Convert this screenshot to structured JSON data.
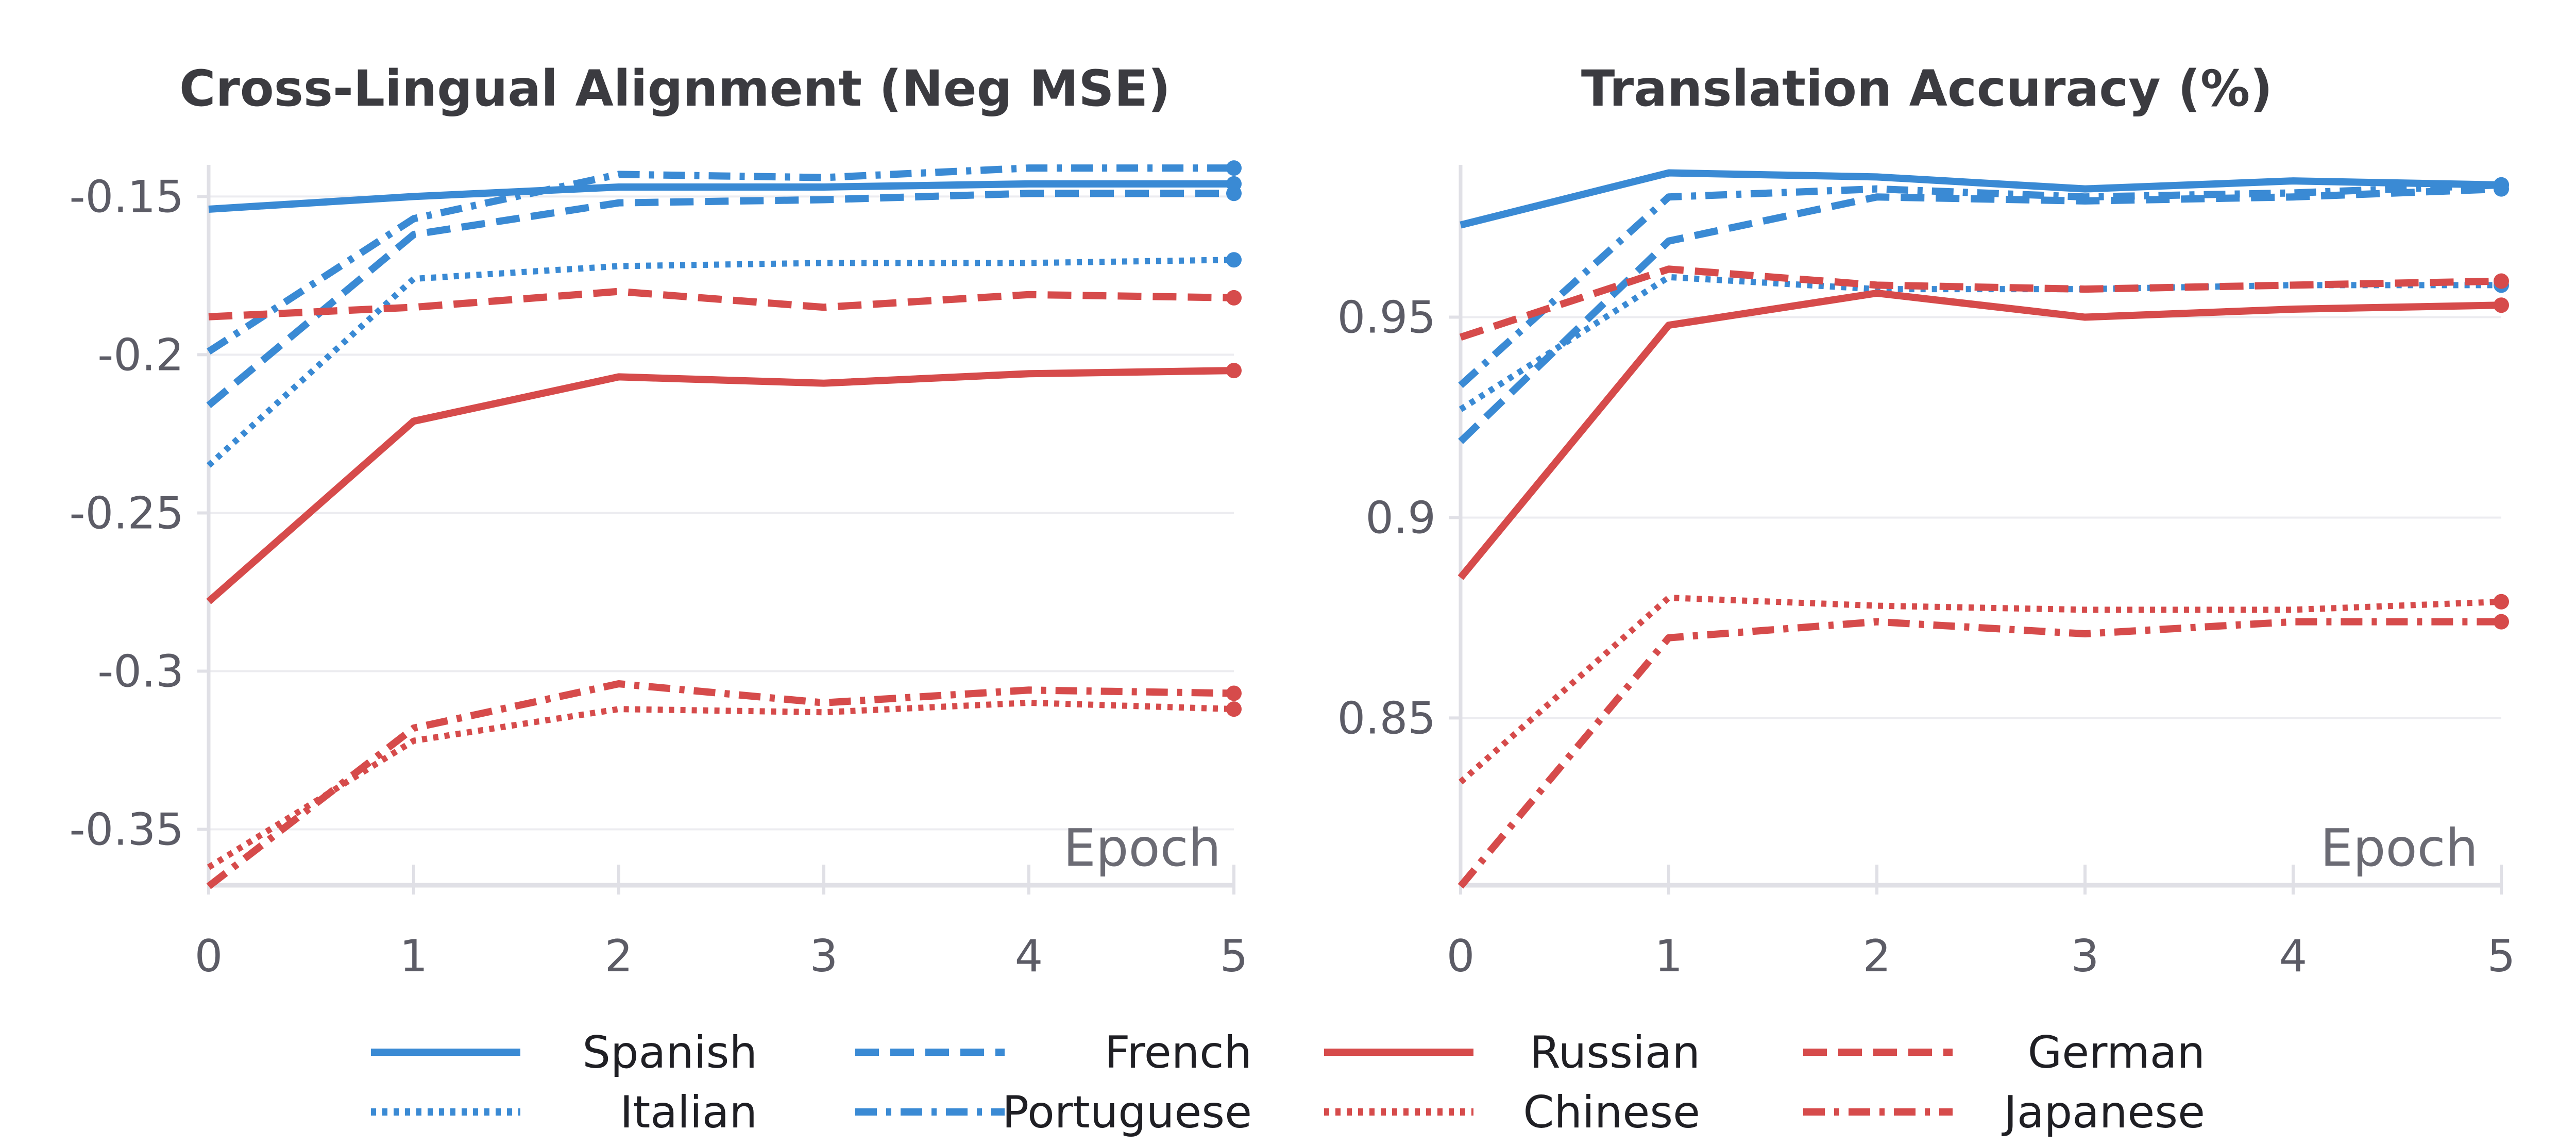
{
  "chart_data": [
    {
      "type": "line",
      "title": "Cross-Lingual Alignment (Neg MSE)",
      "xlabel": "Epoch",
      "ylabel": "",
      "x": [
        0,
        1,
        2,
        3,
        4,
        5
      ],
      "x_ticks": [
        "0",
        "1",
        "2",
        "3",
        "4",
        "5"
      ],
      "y_ticks": [
        "-0.15",
        "-0.2",
        "-0.25",
        "-0.3",
        "-0.35"
      ],
      "y_tick_values": [
        -0.15,
        -0.2,
        -0.25,
        -0.3,
        -0.35
      ],
      "ylim": [
        -0.368,
        -0.14
      ],
      "xlim": [
        0,
        5
      ],
      "grid": "horizontal",
      "series": [
        {
          "name": "Spanish",
          "values": [
            -0.154,
            -0.15,
            -0.147,
            -0.147,
            -0.146,
            -0.146
          ]
        },
        {
          "name": "French",
          "values": [
            -0.216,
            -0.162,
            -0.152,
            -0.151,
            -0.149,
            -0.149
          ]
        },
        {
          "name": "Italian",
          "values": [
            -0.235,
            -0.176,
            -0.172,
            -0.171,
            -0.171,
            -0.17
          ]
        },
        {
          "name": "Portuguese",
          "values": [
            -0.199,
            -0.157,
            -0.143,
            -0.144,
            -0.141,
            -0.141
          ]
        },
        {
          "name": "Russian",
          "values": [
            -0.278,
            -0.221,
            -0.207,
            -0.209,
            -0.206,
            -0.205
          ]
        },
        {
          "name": "German",
          "values": [
            -0.188,
            -0.185,
            -0.18,
            -0.185,
            -0.181,
            -0.182
          ]
        },
        {
          "name": "Chinese",
          "values": [
            -0.362,
            -0.322,
            -0.312,
            -0.313,
            -0.31,
            -0.312
          ]
        },
        {
          "name": "Japanese",
          "values": [
            -0.368,
            -0.318,
            -0.304,
            -0.31,
            -0.306,
            -0.307
          ]
        }
      ]
    },
    {
      "type": "line",
      "title": "Translation Accuracy (%)",
      "xlabel": "Epoch",
      "ylabel": "",
      "x": [
        0,
        1,
        2,
        3,
        4,
        5
      ],
      "x_ticks": [
        "0",
        "1",
        "2",
        "3",
        "4",
        "5"
      ],
      "y_ticks": [
        "0.95",
        "0.9",
        "0.85"
      ],
      "y_tick_values": [
        0.95,
        0.9,
        0.85
      ],
      "ylim": [
        0.808,
        0.988
      ],
      "xlim": [
        0,
        5
      ],
      "grid": "horizontal",
      "series": [
        {
          "name": "Spanish",
          "values": [
            0.973,
            0.986,
            0.985,
            0.982,
            0.984,
            0.983
          ]
        },
        {
          "name": "French",
          "values": [
            0.919,
            0.969,
            0.98,
            0.979,
            0.98,
            0.982
          ]
        },
        {
          "name": "Italian",
          "values": [
            0.927,
            0.96,
            0.957,
            0.957,
            0.958,
            0.958
          ]
        },
        {
          "name": "Portuguese",
          "values": [
            0.933,
            0.98,
            0.982,
            0.98,
            0.981,
            0.983
          ]
        },
        {
          "name": "Russian",
          "values": [
            0.885,
            0.948,
            0.956,
            0.95,
            0.952,
            0.953
          ]
        },
        {
          "name": "German",
          "values": [
            0.945,
            0.962,
            0.958,
            0.957,
            0.958,
            0.959
          ]
        },
        {
          "name": "Chinese",
          "values": [
            0.834,
            0.88,
            0.878,
            0.877,
            0.877,
            0.879
          ]
        },
        {
          "name": "Japanese",
          "values": [
            0.808,
            0.87,
            0.874,
            0.871,
            0.874,
            0.874
          ]
        }
      ]
    }
  ],
  "legend": {
    "placement": "bottom",
    "entries": [
      {
        "name": "Spanish",
        "color": "#3a8ad4",
        "style": "solid"
      },
      {
        "name": "French",
        "color": "#3a8ad4",
        "style": "dashed"
      },
      {
        "name": "Russian",
        "color": "#d64b4b",
        "style": "solid"
      },
      {
        "name": "German",
        "color": "#d64b4b",
        "style": "dashed"
      },
      {
        "name": "Italian",
        "color": "#3a8ad4",
        "style": "dotted"
      },
      {
        "name": "Portuguese",
        "color": "#3a8ad4",
        "style": "dashdot"
      },
      {
        "name": "Chinese",
        "color": "#d64b4b",
        "style": "dotted"
      },
      {
        "name": "Japanese",
        "color": "#d64b4b",
        "style": "dashdot"
      }
    ]
  },
  "colors": {
    "blue": "#3a8ad4",
    "red": "#d64b4b",
    "grid": "#ececf0",
    "axis": "#e0e0e6"
  }
}
